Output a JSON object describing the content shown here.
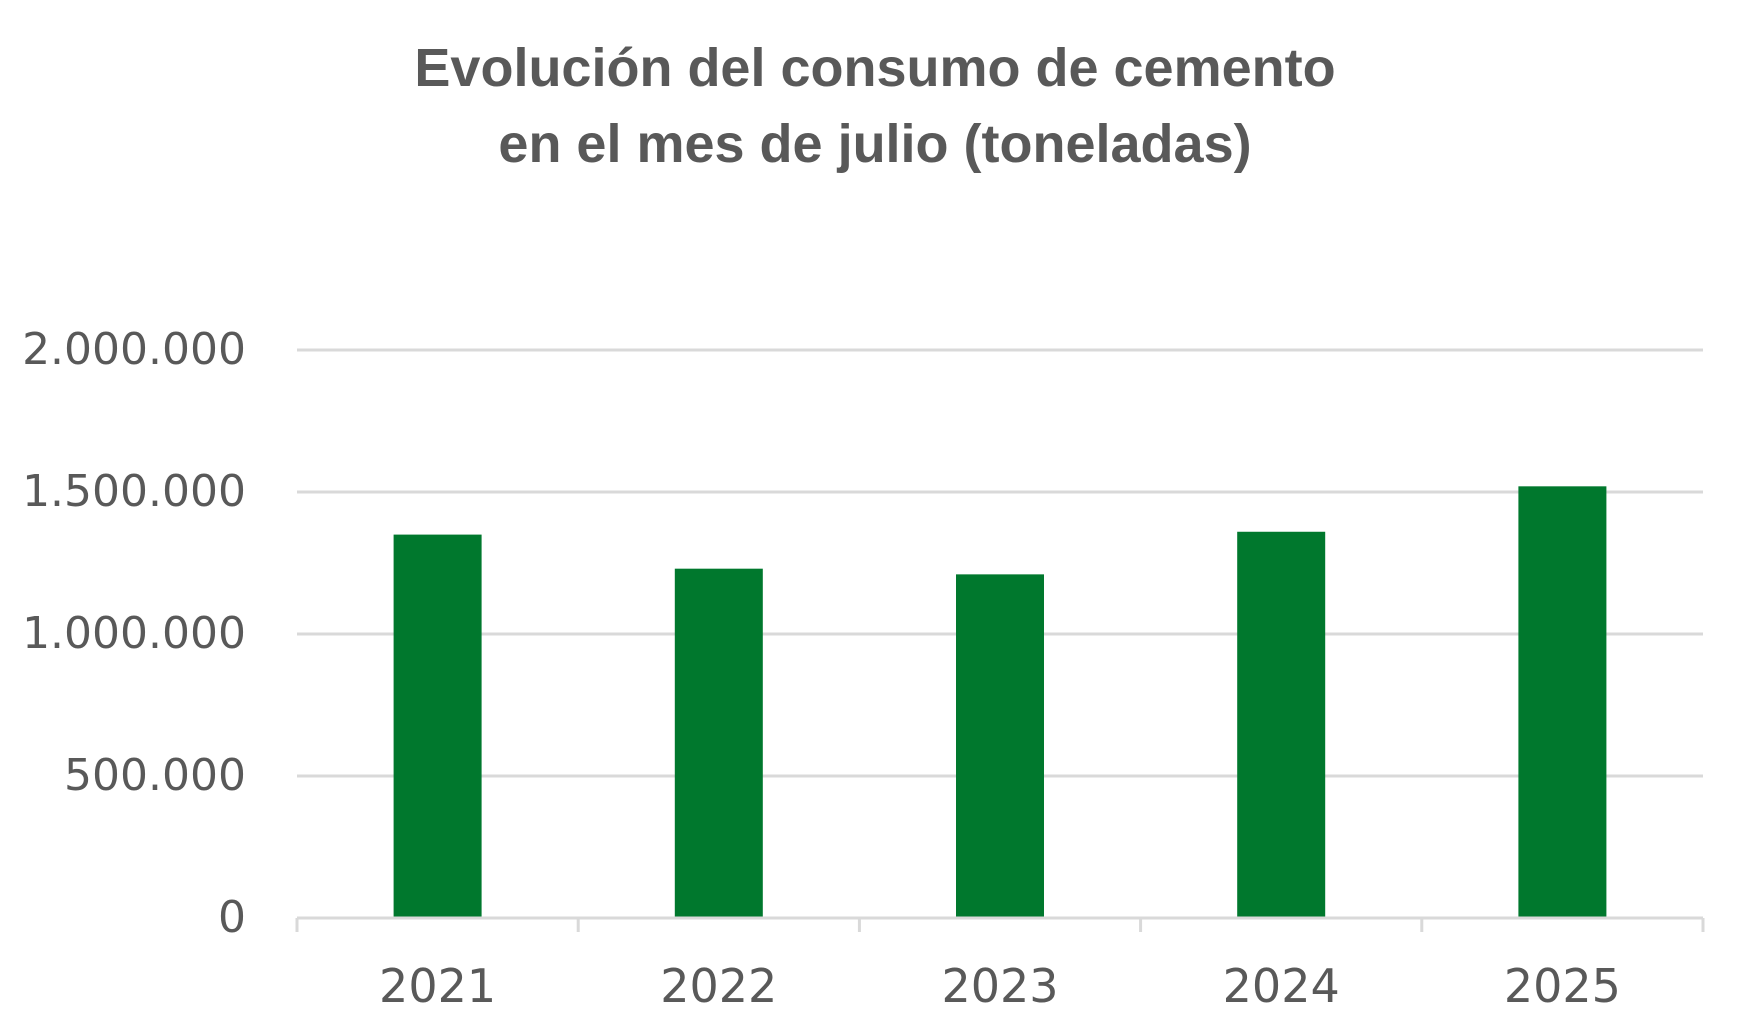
{
  "chart_data": {
    "type": "bar",
    "title_lines": [
      "Evolución del consumo de cemento",
      "en el mes de julio (toneladas)"
    ],
    "categories": [
      "2021",
      "2022",
      "2023",
      "2024",
      "2025"
    ],
    "values": [
      1350000,
      1230000,
      1210000,
      1360000,
      1520000
    ],
    "ylim": [
      0,
      2000000
    ],
    "yticks": [
      0,
      500000,
      1000000,
      1500000,
      2000000
    ],
    "ytick_labels": [
      "0",
      "500.000",
      "1.000.000",
      "1.500.000",
      "2.000.000"
    ],
    "xlabel": "",
    "ylabel": "",
    "grid": true,
    "legend": "none",
    "bar_color": "#00782D",
    "grid_color": "#D9D9D9",
    "axis_color": "#D9D9D9",
    "tick_label_color": "#595959",
    "title_color": "#595959"
  }
}
